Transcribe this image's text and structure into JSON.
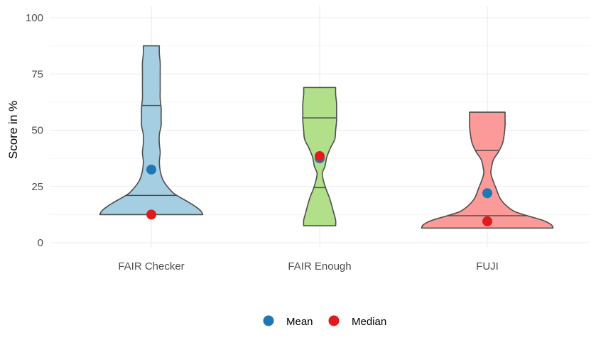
{
  "chart_data": {
    "type": "violin",
    "categories": [
      "FAIR Checker",
      "FAIR Enough",
      "FUJI"
    ],
    "ylabel": "Score in %",
    "xlabel": "",
    "ylim": [
      0,
      100
    ],
    "yticks": [
      0,
      25,
      50,
      75,
      100
    ],
    "grid": true,
    "legend_position": "bottom",
    "colors": {
      "FAIR Checker": "#a6cee3",
      "FAIR Enough": "#b2df8a",
      "FUJI": "#fb9a99",
      "outline": "#4d4d4d",
      "mean": "#1f78b4",
      "median": "#e31a1c",
      "grid": "#ebebeb"
    },
    "violins": [
      {
        "category": "FAIR Checker",
        "min": 12.5,
        "max": 87.5,
        "quantiles": [
          21,
          61
        ],
        "mean": 32.5,
        "median": 12.5,
        "density": [
          [
            12.5,
            0.58
          ],
          [
            14,
            0.56
          ],
          [
            16,
            0.5
          ],
          [
            18,
            0.42
          ],
          [
            20,
            0.33
          ],
          [
            22,
            0.25
          ],
          [
            25,
            0.18
          ],
          [
            28,
            0.13
          ],
          [
            32,
            0.1
          ],
          [
            36,
            0.09
          ],
          [
            40,
            0.1
          ],
          [
            44,
            0.09
          ],
          [
            48,
            0.09
          ],
          [
            52,
            0.11
          ],
          [
            56,
            0.11
          ],
          [
            60,
            0.11
          ],
          [
            64,
            0.1
          ],
          [
            68,
            0.1
          ],
          [
            72,
            0.1
          ],
          [
            76,
            0.1
          ],
          [
            80,
            0.1
          ],
          [
            84,
            0.09
          ],
          [
            87.5,
            0.09
          ]
        ]
      },
      {
        "category": "FAIR Enough",
        "min": 7.5,
        "max": 69,
        "quantiles": [
          24.5,
          55.5
        ],
        "mean": 37.5,
        "median": 38.5,
        "density": [
          [
            7.5,
            0.18
          ],
          [
            10,
            0.18
          ],
          [
            13,
            0.16
          ],
          [
            16,
            0.14
          ],
          [
            20,
            0.11
          ],
          [
            24,
            0.07
          ],
          [
            28,
            0.04
          ],
          [
            31,
            0.03
          ],
          [
            34,
            0.06
          ],
          [
            38,
            0.08
          ],
          [
            42,
            0.12
          ],
          [
            46,
            0.17
          ],
          [
            50,
            0.18
          ],
          [
            54,
            0.19
          ],
          [
            58,
            0.19
          ],
          [
            62,
            0.19
          ],
          [
            66,
            0.18
          ],
          [
            69,
            0.18
          ]
        ]
      },
      {
        "category": "FUJI",
        "min": 6.5,
        "max": 58,
        "quantiles": [
          12,
          41
        ],
        "mean": 22,
        "median": 9.5,
        "density": [
          [
            6.5,
            0.74
          ],
          [
            8,
            0.72
          ],
          [
            10,
            0.62
          ],
          [
            12,
            0.45
          ],
          [
            14,
            0.3
          ],
          [
            17,
            0.2
          ],
          [
            20,
            0.14
          ],
          [
            24,
            0.1
          ],
          [
            28,
            0.06
          ],
          [
            31,
            0.04
          ],
          [
            34,
            0.05
          ],
          [
            37,
            0.07
          ],
          [
            40,
            0.12
          ],
          [
            44,
            0.17
          ],
          [
            48,
            0.19
          ],
          [
            52,
            0.2
          ],
          [
            55,
            0.2
          ],
          [
            58,
            0.2
          ]
        ]
      }
    ],
    "legend": [
      {
        "label": "Mean",
        "color": "#1f78b4"
      },
      {
        "label": "Median",
        "color": "#e31a1c"
      }
    ]
  }
}
